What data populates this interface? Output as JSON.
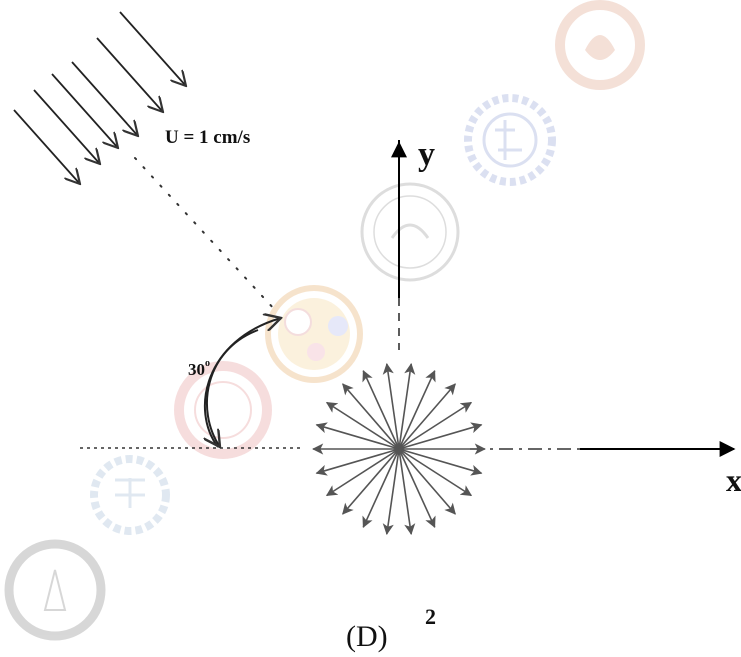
{
  "labels": {
    "velocity": "U = 1 cm/s",
    "y_axis": "y",
    "x_axis": "x",
    "angle_value": "30",
    "angle_unit": "o",
    "figure": "(D)",
    "page_number": "2"
  },
  "flow": {
    "incident_angle_deg": 30,
    "speed_cm_per_s": 1,
    "incoming_arrow_count": 6
  },
  "rosette": {
    "arrow_count": 22
  },
  "colors": {
    "ink": "#222222",
    "axis": "#000000",
    "rosette_arrow": "#555555",
    "watermark_orange": "#e0a890",
    "watermark_blue": "#9aa8d8",
    "watermark_grey": "#a0a0a0"
  },
  "watermarks": [
    {
      "name": "seal-top-right",
      "icon": "institute-seal-icon"
    },
    {
      "name": "emblem-blue-gear",
      "icon": "gear-emblem-icon"
    },
    {
      "name": "seal-centre-grey",
      "icon": "institute-seal-icon"
    },
    {
      "name": "logo-tricolor",
      "icon": "tricolor-circle-icon"
    },
    {
      "name": "seal-orange-left",
      "icon": "institute-seal-icon"
    },
    {
      "name": "emblem-blue-left",
      "icon": "gear-emblem-icon"
    },
    {
      "name": "seal-bottom-left",
      "icon": "institute-seal-icon"
    }
  ]
}
